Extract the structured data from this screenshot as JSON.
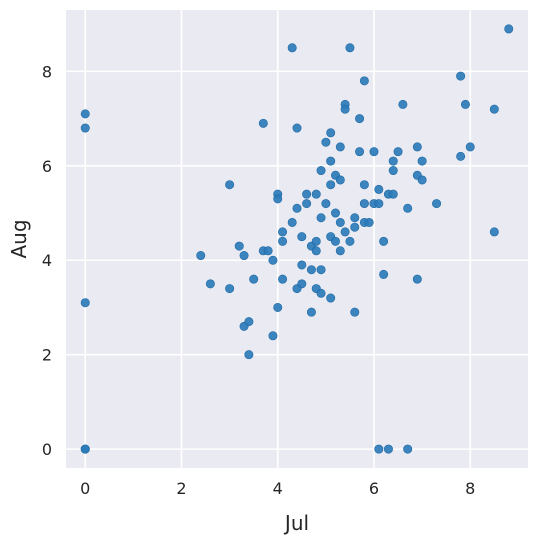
{
  "chart_data": {
    "type": "scatter",
    "title": "",
    "xlabel": "Jul",
    "ylabel": "Aug",
    "xlim": [
      -0.4,
      9.2
    ],
    "ylim": [
      -0.4,
      9.3
    ],
    "x_ticks": [
      0,
      2,
      4,
      6,
      8
    ],
    "y_ticks": [
      0,
      2,
      4,
      6,
      8
    ],
    "grid": true,
    "legend": "none",
    "colors": {
      "background": "#eaeaf2",
      "grid": "#ffffff",
      "point": "#2b7bba",
      "text": "#262626"
    },
    "series": [
      {
        "points": [
          [
            0,
            7.1
          ],
          [
            0,
            6.8
          ],
          [
            0,
            3.1
          ],
          [
            0,
            0
          ],
          [
            0,
            0
          ],
          [
            2.4,
            4.1
          ],
          [
            2.6,
            3.5
          ],
          [
            3.0,
            5.6
          ],
          [
            3.0,
            3.4
          ],
          [
            3.2,
            4.3
          ],
          [
            3.3,
            4.1
          ],
          [
            3.3,
            2.6
          ],
          [
            3.4,
            2.7
          ],
          [
            3.4,
            2.0
          ],
          [
            3.5,
            3.6
          ],
          [
            3.7,
            6.9
          ],
          [
            3.7,
            4.2
          ],
          [
            3.8,
            4.2
          ],
          [
            3.9,
            4.0
          ],
          [
            3.9,
            2.4
          ],
          [
            4.0,
            5.4
          ],
          [
            4.0,
            5.3
          ],
          [
            4.0,
            3.0
          ],
          [
            4.1,
            4.6
          ],
          [
            4.1,
            4.4
          ],
          [
            4.1,
            3.6
          ],
          [
            4.3,
            8.5
          ],
          [
            4.3,
            4.8
          ],
          [
            4.4,
            6.8
          ],
          [
            4.4,
            5.1
          ],
          [
            4.4,
            3.4
          ],
          [
            4.5,
            4.5
          ],
          [
            4.5,
            3.9
          ],
          [
            4.5,
            3.5
          ],
          [
            4.6,
            5.4
          ],
          [
            4.6,
            5.2
          ],
          [
            4.7,
            4.3
          ],
          [
            4.7,
            3.8
          ],
          [
            4.7,
            2.9
          ],
          [
            4.8,
            5.4
          ],
          [
            4.8,
            4.4
          ],
          [
            4.8,
            4.2
          ],
          [
            4.8,
            3.4
          ],
          [
            4.9,
            5.9
          ],
          [
            4.9,
            4.9
          ],
          [
            4.9,
            3.8
          ],
          [
            4.9,
            3.3
          ],
          [
            5.0,
            6.5
          ],
          [
            5.0,
            5.2
          ],
          [
            5.1,
            6.7
          ],
          [
            5.1,
            6.1
          ],
          [
            5.1,
            5.6
          ],
          [
            5.1,
            4.5
          ],
          [
            5.1,
            3.2
          ],
          [
            5.2,
            5.8
          ],
          [
            5.2,
            5.0
          ],
          [
            5.2,
            4.4
          ],
          [
            5.3,
            6.4
          ],
          [
            5.3,
            5.7
          ],
          [
            5.3,
            4.8
          ],
          [
            5.3,
            4.2
          ],
          [
            5.4,
            7.3
          ],
          [
            5.4,
            7.2
          ],
          [
            5.4,
            4.6
          ],
          [
            5.5,
            8.5
          ],
          [
            5.5,
            4.4
          ],
          [
            5.6,
            4.9
          ],
          [
            5.6,
            4.7
          ],
          [
            5.6,
            2.9
          ],
          [
            5.7,
            7.0
          ],
          [
            5.7,
            6.3
          ],
          [
            5.8,
            7.8
          ],
          [
            5.8,
            5.6
          ],
          [
            5.8,
            5.2
          ],
          [
            5.8,
            4.8
          ],
          [
            5.9,
            4.8
          ],
          [
            6.0,
            6.3
          ],
          [
            6.0,
            5.2
          ],
          [
            6.1,
            5.5
          ],
          [
            6.1,
            5.2
          ],
          [
            6.1,
            0.0
          ],
          [
            6.2,
            4.4
          ],
          [
            6.2,
            3.7
          ],
          [
            6.3,
            5.4
          ],
          [
            6.3,
            0.0
          ],
          [
            6.4,
            6.1
          ],
          [
            6.4,
            5.9
          ],
          [
            6.4,
            5.4
          ],
          [
            6.5,
            6.3
          ],
          [
            6.6,
            7.3
          ],
          [
            6.7,
            5.1
          ],
          [
            6.7,
            0.0
          ],
          [
            6.9,
            6.4
          ],
          [
            6.9,
            5.8
          ],
          [
            6.9,
            3.6
          ],
          [
            7.0,
            6.1
          ],
          [
            7.0,
            5.7
          ],
          [
            7.3,
            5.2
          ],
          [
            7.8,
            7.9
          ],
          [
            7.8,
            6.2
          ],
          [
            7.9,
            7.3
          ],
          [
            8.0,
            6.4
          ],
          [
            8.5,
            7.2
          ],
          [
            8.5,
            4.6
          ],
          [
            8.8,
            8.9
          ]
        ]
      }
    ]
  }
}
